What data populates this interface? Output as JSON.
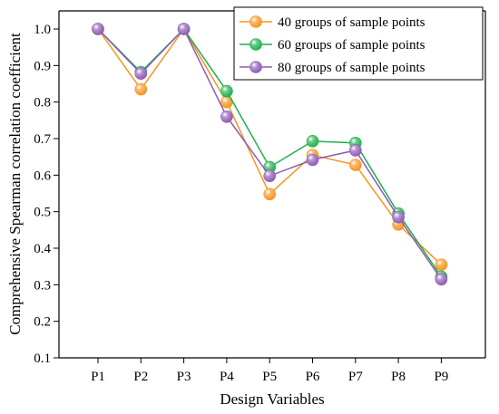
{
  "chart_data": {
    "type": "line",
    "xlabel": "Design Variables",
    "ylabel": "Comprehensive Spearman correlation coefficient",
    "categories": [
      "P1",
      "P2",
      "P3",
      "P4",
      "P5",
      "P6",
      "P7",
      "P8",
      "P9"
    ],
    "ylim": [
      0.1,
      1.05
    ],
    "yticks": [
      0.1,
      0.2,
      0.3,
      0.4,
      0.5,
      0.6,
      0.7,
      0.8,
      0.9,
      1.0
    ],
    "ytick_labels": [
      "0.1",
      "0.2",
      "0.3",
      "0.4",
      "0.5",
      "0.6",
      "0.7",
      "0.8",
      "0.9",
      "1.0"
    ],
    "grid": false,
    "legend_position": "top-right",
    "series": [
      {
        "name": "40 groups of sample points",
        "color": "#F7941D",
        "values": [
          1.0,
          0.835,
          1.0,
          0.8,
          0.548,
          0.655,
          0.628,
          0.465,
          0.355
        ]
      },
      {
        "name": "60 groups of sample points",
        "color": "#1DB14B",
        "values": [
          1.0,
          0.882,
          1.0,
          0.83,
          0.622,
          0.693,
          0.688,
          0.495,
          0.322
        ]
      },
      {
        "name": "80 groups of sample points",
        "color": "#8E5BB5",
        "values": [
          1.0,
          0.878,
          1.0,
          0.76,
          0.598,
          0.642,
          0.668,
          0.485,
          0.315
        ]
      }
    ]
  }
}
